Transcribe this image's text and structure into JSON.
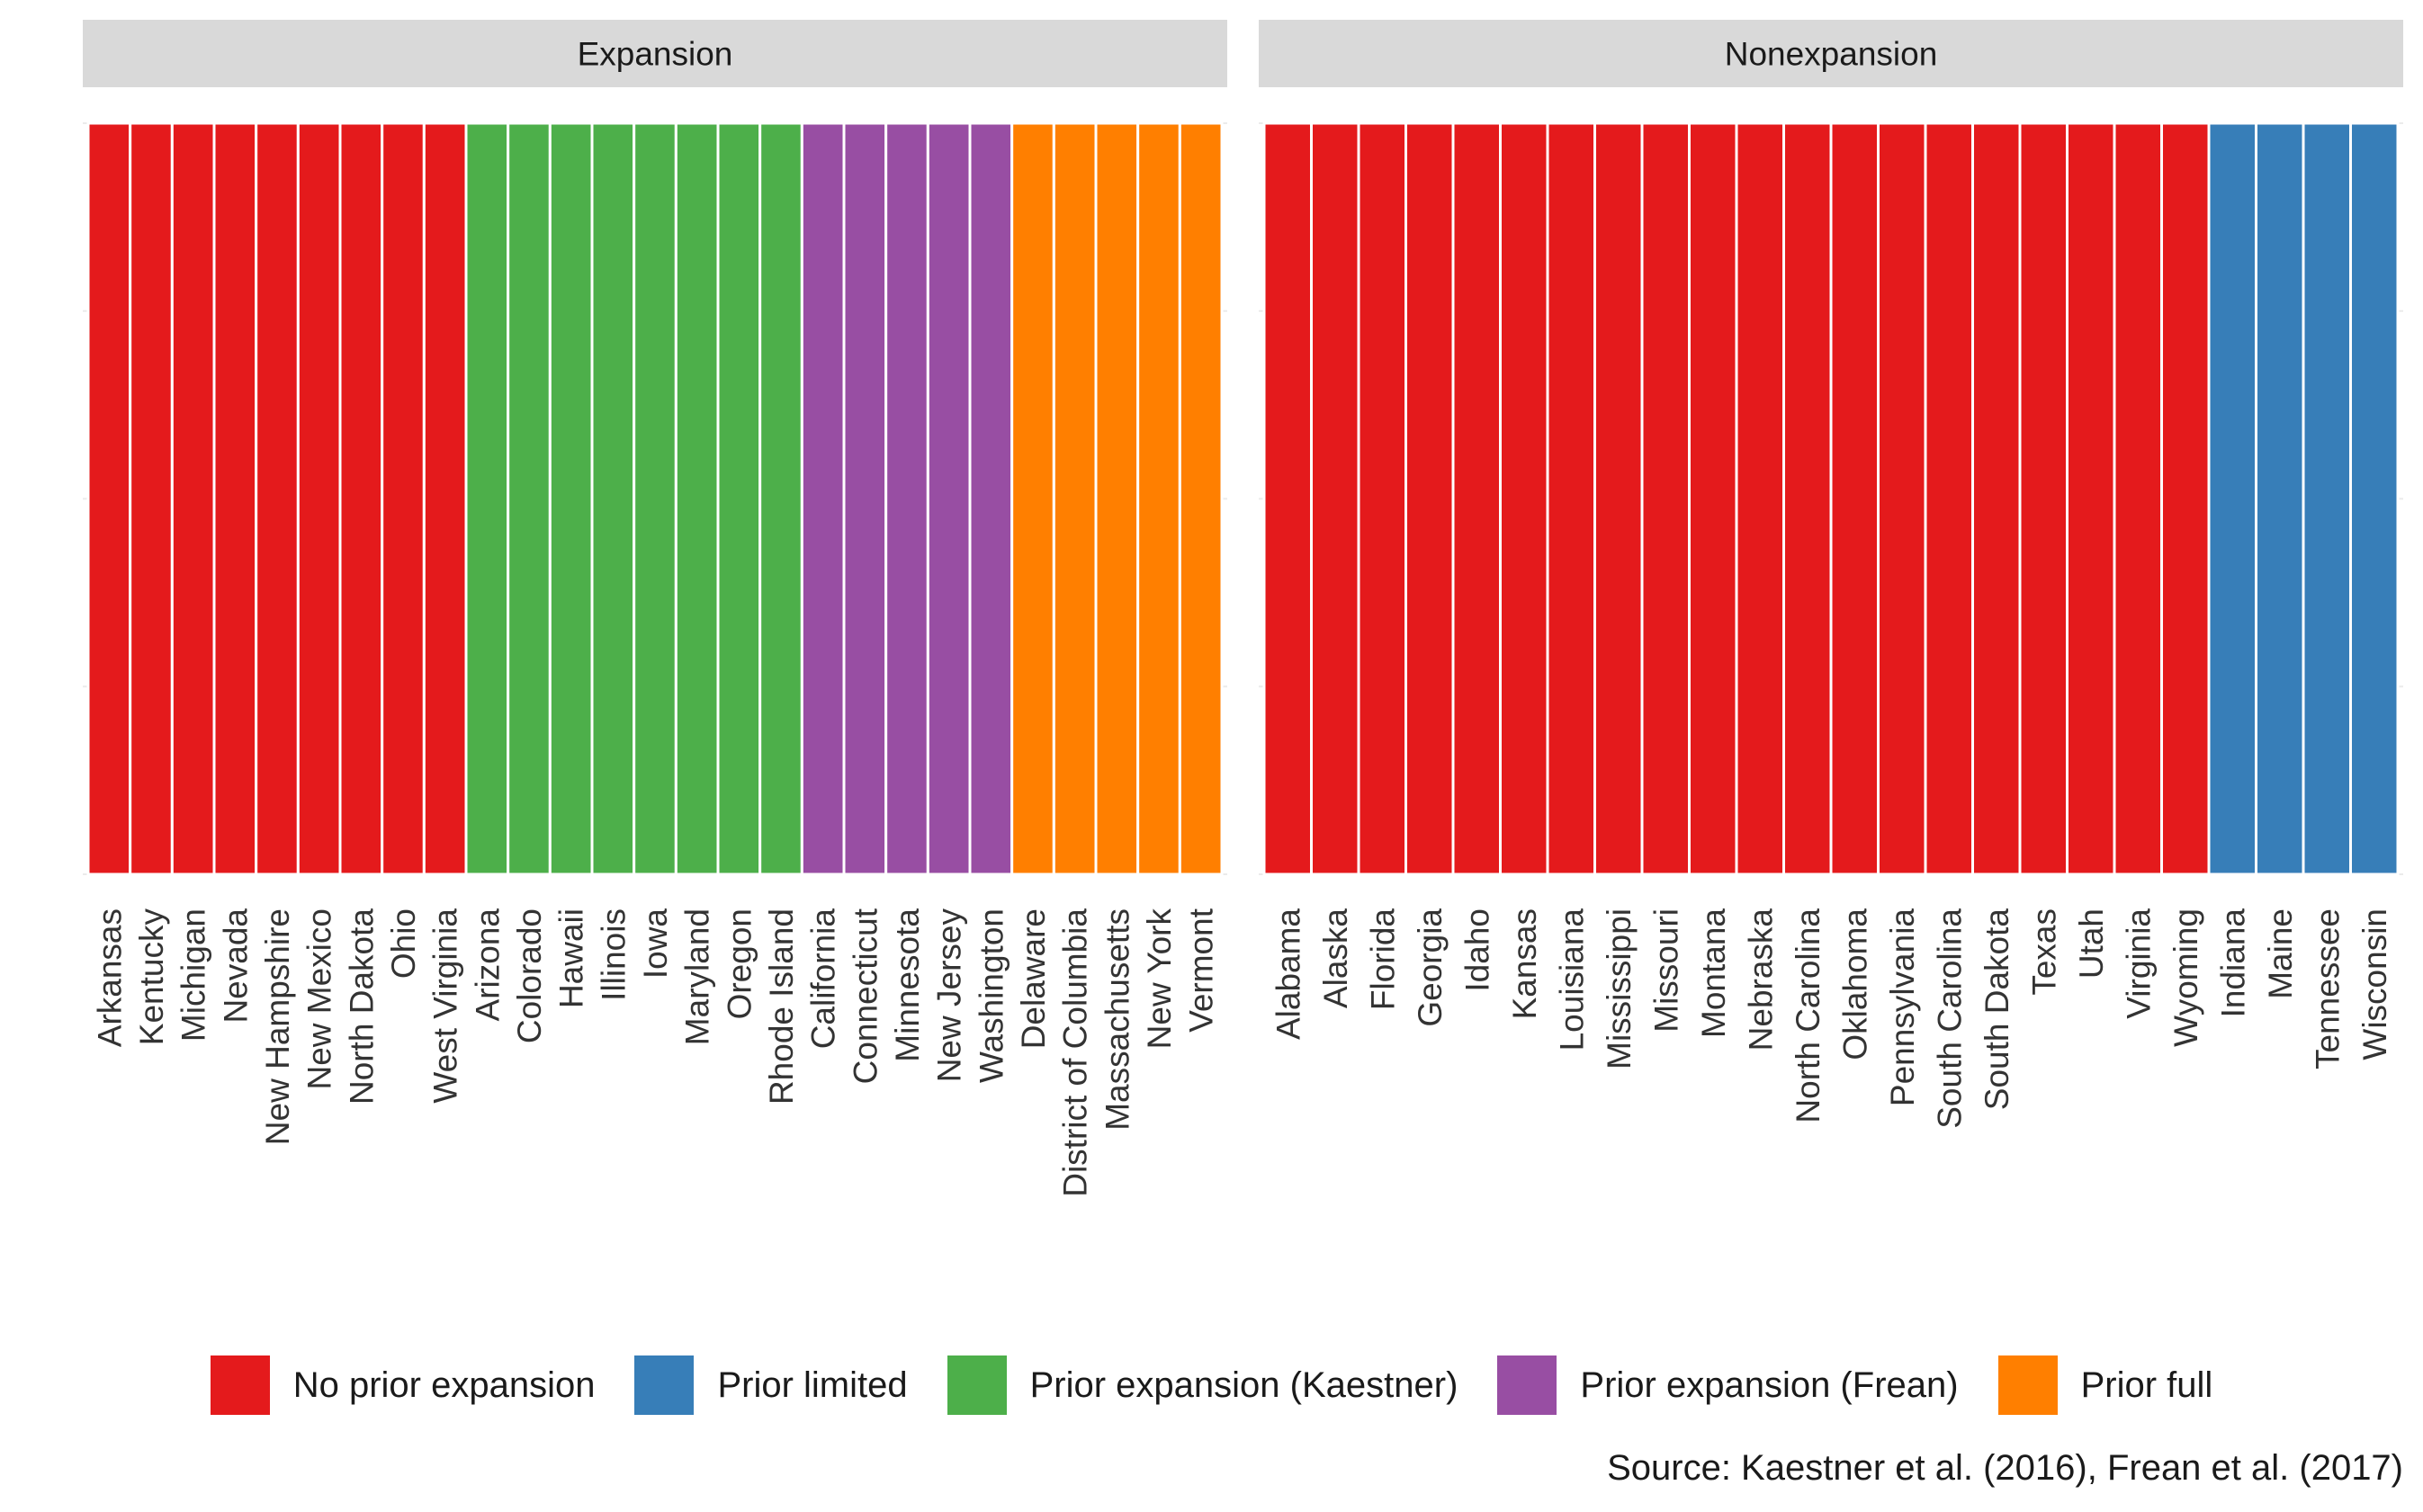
{
  "chart_data": {
    "type": "bar",
    "stacked": true,
    "title": "",
    "xlabel": "",
    "ylabel": "",
    "ylim": [
      0,
      1
    ],
    "y_gridlines": [
      0,
      0.25,
      0.5,
      0.75,
      1
    ],
    "grid": "horizontal",
    "legend_position": "bottom",
    "facets": [
      {
        "label": "Expansion",
        "categories": [
          "Arkansas",
          "Kentucky",
          "Michigan",
          "Nevada",
          "New Hampshire",
          "New Mexico",
          "North Dakota",
          "Ohio",
          "West Virginia",
          "Arizona",
          "Colorado",
          "Hawaii",
          "Illinois",
          "Iowa",
          "Maryland",
          "Oregon",
          "Rhode Island",
          "California",
          "Connecticut",
          "Minnesota",
          "New Jersey",
          "Washington",
          "Delaware",
          "District of Columbia",
          "Massachusetts",
          "New York",
          "Vermont"
        ],
        "groups": [
          "No prior expansion",
          "No prior expansion",
          "No prior expansion",
          "No prior expansion",
          "No prior expansion",
          "No prior expansion",
          "No prior expansion",
          "No prior expansion",
          "No prior expansion",
          "Prior expansion (Kaestner)",
          "Prior expansion (Kaestner)",
          "Prior expansion (Kaestner)",
          "Prior expansion (Kaestner)",
          "Prior expansion (Kaestner)",
          "Prior expansion (Kaestner)",
          "Prior expansion (Kaestner)",
          "Prior expansion (Kaestner)",
          "Prior expansion (Frean)",
          "Prior expansion (Frean)",
          "Prior expansion (Frean)",
          "Prior expansion (Frean)",
          "Prior expansion (Frean)",
          "Prior full",
          "Prior full",
          "Prior full",
          "Prior full",
          "Prior full"
        ],
        "values": [
          1,
          1,
          1,
          1,
          1,
          1,
          1,
          1,
          1,
          1,
          1,
          1,
          1,
          1,
          1,
          1,
          1,
          1,
          1,
          1,
          1,
          1,
          1,
          1,
          1,
          1,
          1
        ]
      },
      {
        "label": "Nonexpansion",
        "categories": [
          "Alabama",
          "Alaska",
          "Florida",
          "Georgia",
          "Idaho",
          "Kansas",
          "Louisiana",
          "Mississippi",
          "Missouri",
          "Montana",
          "Nebraska",
          "North Carolina",
          "Oklahoma",
          "Pennsylvania",
          "South Carolina",
          "South Dakota",
          "Texas",
          "Utah",
          "Virginia",
          "Wyoming",
          "Indiana",
          "Maine",
          "Tennessee",
          "Wisconsin"
        ],
        "groups": [
          "No prior expansion",
          "No prior expansion",
          "No prior expansion",
          "No prior expansion",
          "No prior expansion",
          "No prior expansion",
          "No prior expansion",
          "No prior expansion",
          "No prior expansion",
          "No prior expansion",
          "No prior expansion",
          "No prior expansion",
          "No prior expansion",
          "No prior expansion",
          "No prior expansion",
          "No prior expansion",
          "No prior expansion",
          "No prior expansion",
          "No prior expansion",
          "No prior expansion",
          "Prior limited",
          "Prior limited",
          "Prior limited",
          "Prior limited"
        ],
        "values": [
          1,
          1,
          1,
          1,
          1,
          1,
          1,
          1,
          1,
          1,
          1,
          1,
          1,
          1,
          1,
          1,
          1,
          1,
          1,
          1,
          1,
          1,
          1,
          1
        ]
      }
    ],
    "legend": [
      {
        "label": "No prior expansion",
        "color": "#E41A1C"
      },
      {
        "label": "Prior limited",
        "color": "#377EB8"
      },
      {
        "label": "Prior expansion (Kaestner)",
        "color": "#4DAF4A"
      },
      {
        "label": "Prior expansion (Frean)",
        "color": "#984EA3"
      },
      {
        "label": "Prior full",
        "color": "#FF7F00"
      }
    ]
  },
  "caption": "Source: Kaestner et al. (2016), Frean et al. (2017)",
  "colors": {
    "strip_background": "#D9D9D9",
    "gridline": "#EBEBEB",
    "bar_separator": "#FFFFFF"
  }
}
